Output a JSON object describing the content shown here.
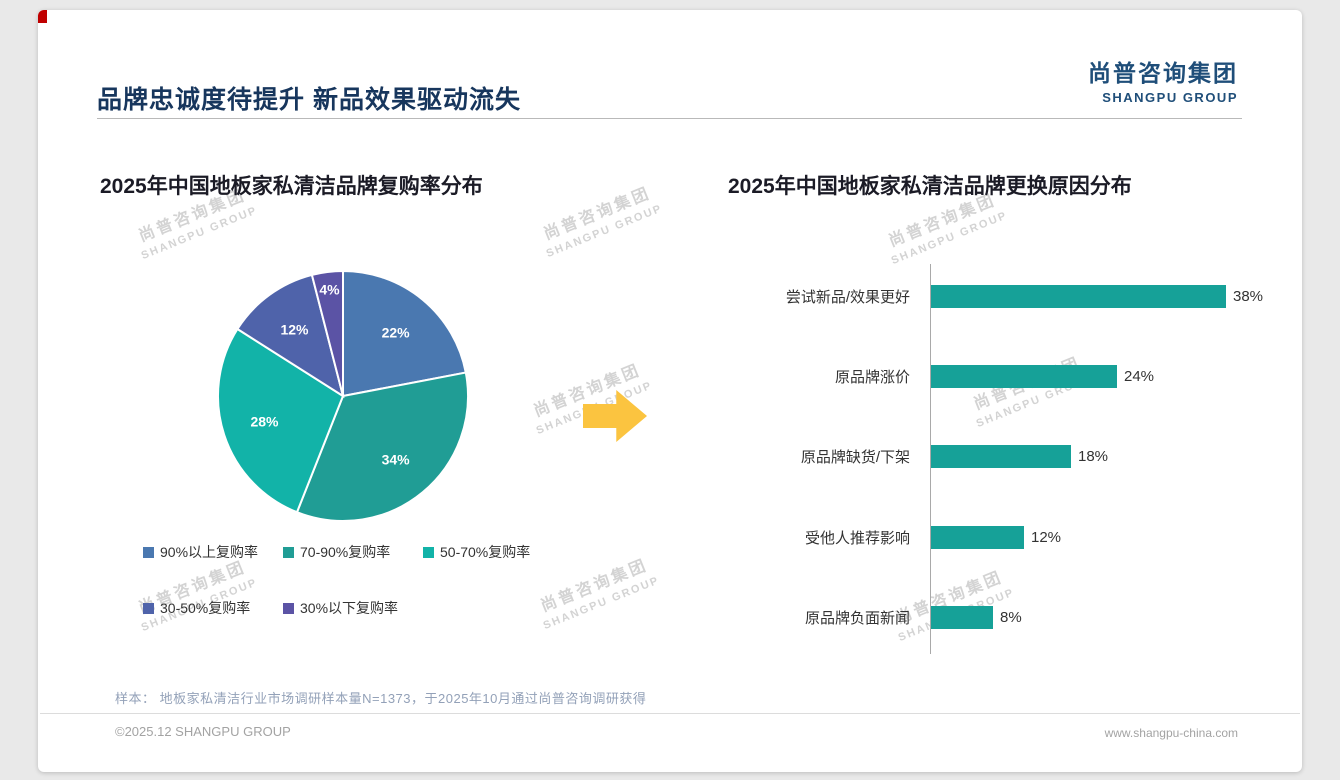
{
  "page": {
    "title": "品牌忠诚度待提升 新品效果驱动流失",
    "logo": {
      "cn": "尚普咨询集团",
      "en": "SHANGPU GROUP"
    },
    "watermark": {
      "cn": "尚普咨询集团",
      "en": "SHANGPU GROUP"
    },
    "footer_note": "样本： 地板家私清洁行业市场调研样本量N=1373，于2025年10月通过尚普咨询调研获得",
    "copyright": "©2025.12 SHANGPU GROUP",
    "website": "www.shangpu-china.com"
  },
  "colors": {
    "title_navy": "#17365d",
    "logo_navy": "#1f4e79",
    "bar_teal": "#16a198",
    "arrow_yellow": "#fbc440",
    "accent_red": "#c00000"
  },
  "chart_data": [
    {
      "type": "pie",
      "title": "2025年中国地板家私清洁品牌复购率分布",
      "labels": [
        "90%以上复购率",
        "70-90%复购率",
        "50-70%复购率",
        "30-50%复购率",
        "30%以下复购率"
      ],
      "values": [
        22,
        34,
        28,
        12,
        4
      ],
      "data_labels": [
        "22%",
        "34%",
        "28%",
        "12%",
        "4%"
      ],
      "colors": [
        "#4a78b0",
        "#209d95",
        "#12b3a8",
        "#4f63aa",
        "#5b53a5"
      ],
      "start_angle_deg": -90,
      "direction": "clockwise",
      "legend_position": "bottom"
    },
    {
      "type": "bar",
      "orientation": "horizontal",
      "title": "2025年中国地板家私清洁品牌更换原因分布",
      "categories": [
        "尝试新品/效果更好",
        "原品牌涨价",
        "原品牌缺货/下架",
        "受他人推荐影响",
        "原品牌负面新闻"
      ],
      "values": [
        38,
        24,
        18,
        12,
        8
      ],
      "data_labels": [
        "38%",
        "24%",
        "18%",
        "12%",
        "8%"
      ],
      "bar_color": "#16a198",
      "xlim": [
        0,
        40
      ],
      "grid": false,
      "value_label_position": "right"
    }
  ]
}
